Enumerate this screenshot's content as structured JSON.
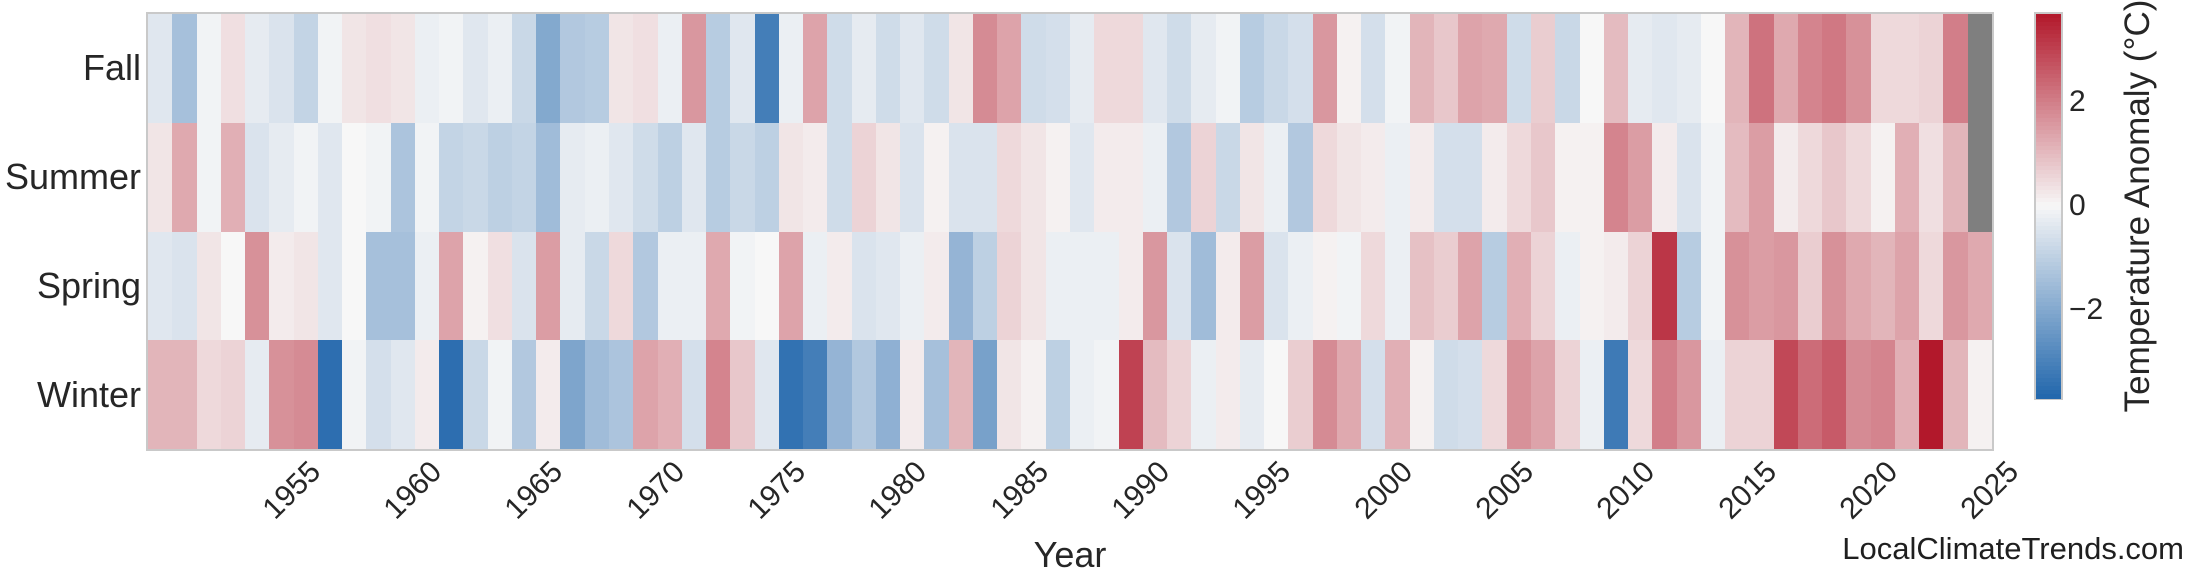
{
  "figure": {
    "background": "#ffffff",
    "frame_color": "#c9c9c9",
    "text_color": "#262626",
    "watermark": "LocalClimateTrends.com"
  },
  "chart_data": {
    "type": "heatmap",
    "title": "",
    "xlabel": "Year",
    "ylabel": "",
    "legend_position": "right-colorbar",
    "grid": false,
    "rows": [
      "Fall",
      "Summer",
      "Spring",
      "Winter"
    ],
    "years": [
      1950,
      1951,
      1952,
      1953,
      1954,
      1955,
      1956,
      1957,
      1958,
      1959,
      1960,
      1961,
      1962,
      1963,
      1964,
      1965,
      1966,
      1967,
      1968,
      1969,
      1970,
      1971,
      1972,
      1973,
      1974,
      1975,
      1976,
      1977,
      1978,
      1979,
      1980,
      1981,
      1982,
      1983,
      1984,
      1985,
      1986,
      1987,
      1988,
      1989,
      1990,
      1991,
      1992,
      1993,
      1994,
      1995,
      1996,
      1997,
      1998,
      1999,
      2000,
      2001,
      2002,
      2003,
      2004,
      2005,
      2006,
      2007,
      2008,
      2009,
      2010,
      2011,
      2012,
      2013,
      2014,
      2015,
      2016,
      2017,
      2018,
      2019,
      2020,
      2021,
      2022,
      2023,
      2024,
      2025
    ],
    "x_ticks": [
      1955,
      1960,
      1965,
      1970,
      1975,
      1980,
      1985,
      1990,
      1995,
      2000,
      2005,
      2010,
      2015,
      2020,
      2025
    ],
    "series": [
      {
        "name": "Fall",
        "values": [
          -0.4,
          -1.4,
          -0.1,
          0.4,
          -0.3,
          -0.5,
          -0.9,
          -0.1,
          0.3,
          0.4,
          0.3,
          -0.2,
          -0.1,
          -0.4,
          -0.2,
          -0.8,
          -2.0,
          -1.2,
          -1.1,
          0.3,
          0.4,
          -0.2,
          1.6,
          -1.1,
          -0.4,
          -3.1,
          -0.2,
          1.4,
          -0.7,
          -0.3,
          -0.7,
          -0.4,
          -0.7,
          0.3,
          1.8,
          1.4,
          -0.7,
          -0.6,
          -0.3,
          0.5,
          0.5,
          -0.4,
          -0.7,
          -0.3,
          -0.1,
          -1.1,
          -0.8,
          -0.6,
          1.6,
          0.1,
          -0.6,
          -0.1,
          1.1,
          0.8,
          1.4,
          1.3,
          -0.7,
          0.7,
          -0.8,
          0.0,
          1.0,
          -0.3,
          -0.4,
          -0.3,
          0.0,
          1.1,
          2.2,
          1.3,
          1.9,
          2.1,
          1.7,
          0.5,
          0.5,
          0.6,
          2.0,
          null
        ]
      },
      {
        "name": "Summer",
        "values": [
          0.3,
          1.3,
          -0.1,
          1.2,
          -0.5,
          -0.3,
          -0.1,
          -0.4,
          0.0,
          -0.1,
          -1.3,
          -0.1,
          -0.9,
          -0.8,
          -1.0,
          -0.9,
          -1.5,
          -0.3,
          -0.2,
          -0.4,
          -0.7,
          -1.0,
          -0.4,
          -1.1,
          -0.8,
          -1.0,
          0.3,
          0.2,
          -0.7,
          0.6,
          0.3,
          -0.5,
          0.1,
          -0.5,
          -0.5,
          0.5,
          0.3,
          0.1,
          -0.4,
          0.2,
          0.2,
          -0.2,
          -1.2,
          0.6,
          -0.8,
          0.3,
          -0.2,
          -1.2,
          0.5,
          0.3,
          0.2,
          -0.2,
          0.2,
          -0.6,
          -0.6,
          0.2,
          0.5,
          0.8,
          0.1,
          0.1,
          1.9,
          1.5,
          0.2,
          -0.5,
          -0.1,
          1.0,
          1.5,
          0.2,
          0.5,
          0.8,
          0.5,
          0.1,
          1.2,
          0.4,
          1.1,
          null
        ]
      },
      {
        "name": "Spring",
        "values": [
          -0.4,
          -0.5,
          0.3,
          0.0,
          1.7,
          0.2,
          0.3,
          -0.4,
          0.0,
          -1.4,
          -1.4,
          -0.2,
          1.4,
          0.1,
          0.4,
          -0.5,
          1.5,
          -0.3,
          -0.8,
          0.5,
          -1.2,
          -0.2,
          -0.2,
          1.3,
          -0.1,
          0.0,
          1.4,
          -0.2,
          0.2,
          -0.5,
          -0.4,
          -0.2,
          0.2,
          -1.7,
          -1.0,
          0.6,
          0.3,
          -0.2,
          -0.2,
          -0.2,
          0.2,
          1.6,
          -0.5,
          -1.5,
          0.2,
          1.5,
          -0.5,
          -0.2,
          0.1,
          -0.1,
          0.5,
          -0.2,
          0.9,
          0.7,
          1.4,
          -1.1,
          1.2,
          0.6,
          -0.2,
          0.1,
          0.2,
          0.6,
          3.2,
          -1.1,
          -0.1,
          1.7,
          1.5,
          1.6,
          0.7,
          1.7,
          1.3,
          1.1,
          1.4,
          0.5,
          1.6,
          1.3
        ]
      },
      {
        "name": "Winter",
        "values": [
          1.1,
          1.1,
          0.5,
          0.6,
          -0.3,
          1.7,
          1.8,
          -3.5,
          -0.1,
          -0.6,
          -0.4,
          0.2,
          -3.5,
          -0.8,
          -0.1,
          -1.2,
          0.2,
          -2.1,
          -1.5,
          -1.3,
          1.4,
          1.2,
          -0.6,
          1.9,
          0.8,
          -0.4,
          -3.4,
          -3.1,
          -1.7,
          -1.2,
          -1.8,
          0.2,
          -1.4,
          1.1,
          -2.2,
          0.3,
          0.1,
          -1.0,
          -0.2,
          -0.1,
          3.0,
          1.0,
          0.6,
          -0.2,
          0.2,
          -0.3,
          0.0,
          0.7,
          1.8,
          1.3,
          -0.6,
          1.2,
          0.1,
          -0.7,
          -0.6,
          0.5,
          1.7,
          1.4,
          0.6,
          -0.2,
          -3.2,
          0.5,
          2.0,
          1.6,
          -0.2,
          0.6,
          0.6,
          2.9,
          2.3,
          2.6,
          1.8,
          1.9,
          1.2,
          3.7,
          1.1,
          0.1
        ]
      }
    ],
    "missing_color": "#7f7f7f",
    "colorbar": {
      "label": "Temperature Anomaly (°C)",
      "ticks": [
        {
          "value": 2,
          "label": "2"
        },
        {
          "value": 0,
          "label": "0"
        },
        {
          "value": -2,
          "label": "−2"
        }
      ],
      "vmin": -3.7,
      "vmax": 3.7,
      "color_negative": "#2166ac",
      "color_zero": "#f7f7f7",
      "color_positive": "#b2182b"
    }
  }
}
